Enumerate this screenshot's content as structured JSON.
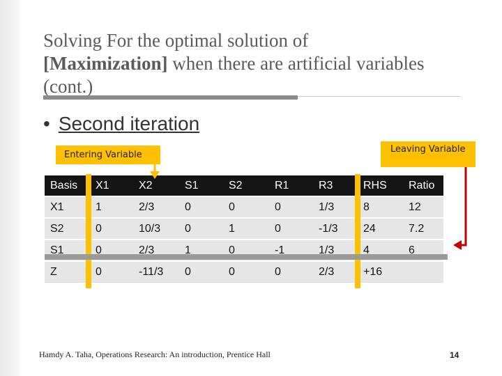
{
  "slide": {
    "title_line1": "Solving For the optimal solution of",
    "title_bold": "[Maximization]",
    "title_rest": " when there are artificial variables",
    "title_line3": "(cont.)",
    "bullet_marker": "•",
    "bullet_text": "Second iteration",
    "entering_label": "Entering Variable",
    "leaving_label": "Leaving Variable",
    "footer": "Hamdy A. Taha, Operations Research: An introduction, Prentice Hall",
    "page_number": "14"
  },
  "table": {
    "headers": [
      "Basis",
      "X1",
      "X2",
      "S1",
      "S2",
      "R1",
      "R3",
      "RHS",
      "Ratio"
    ],
    "rows": [
      [
        "X1",
        "1",
        "2/3",
        "0",
        "0",
        "0",
        "1/3",
        "8",
        "12"
      ],
      [
        "S2",
        "0",
        "10/3",
        "0",
        "1",
        "0",
        "-1/3",
        "24",
        "7.2"
      ],
      [
        "S1",
        "0",
        "2/3",
        "1",
        "0",
        "-1",
        "1/3",
        "4",
        "6"
      ],
      [
        "Z",
        "0",
        "-11/3",
        "0",
        "0",
        "0",
        "2/3",
        "+16",
        ""
      ]
    ]
  },
  "colors": {
    "highlight": "#ffc000",
    "header_bg": "#151515",
    "cell_bg": "#e6e6e6",
    "arrow": "#c00000"
  }
}
